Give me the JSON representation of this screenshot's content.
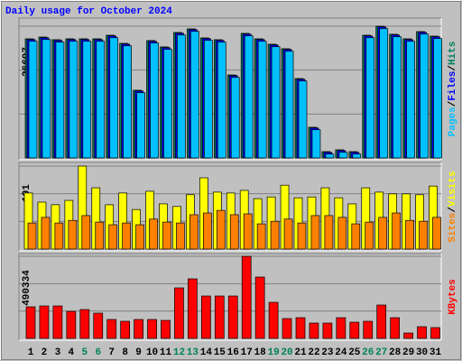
{
  "title": "Daily usage for October 2024",
  "categories": [
    "1",
    "2",
    "3",
    "4",
    "5",
    "6",
    "7",
    "8",
    "9",
    "10",
    "11",
    "12",
    "13",
    "14",
    "15",
    "16",
    "17",
    "18",
    "19",
    "20",
    "21",
    "22",
    "23",
    "24",
    "25",
    "26",
    "27",
    "28",
    "29",
    "30",
    "31"
  ],
  "label_colors": [
    "#000000",
    "#000000",
    "#000000",
    "#000000",
    "#00805c",
    "#00805c",
    "#000000",
    "#000000",
    "#000000",
    "#000000",
    "#000000",
    "#00805c",
    "#00805c",
    "#000000",
    "#000000",
    "#000000",
    "#000000",
    "#000000",
    "#00805c",
    "#00805c",
    "#000000",
    "#000000",
    "#000000",
    "#000000",
    "#000000",
    "#00805c",
    "#00805c",
    "#000000",
    "#000000",
    "#000000",
    "#000000"
  ],
  "legend_separator": "/",
  "chart_data": [
    {
      "type": "bar",
      "ylim": [
        0,
        26697
      ],
      "yticks": [
        26697
      ],
      "series": [
        {
          "name": "Hits",
          "color": "#00805c",
          "values": [
            24140,
            24500,
            23960,
            24140,
            24140,
            24140,
            24870,
            23220,
            13720,
            23780,
            22500,
            25420,
            26150,
            24320,
            23960,
            16820,
            25240,
            24140,
            23040,
            22130,
            16090,
            6220,
            1280,
            1650,
            1280,
            24870,
            26697,
            25060,
            24140,
            25600,
            24690
          ]
        },
        {
          "name": "Files",
          "color": "#0000ff",
          "values": [
            23990,
            24350,
            23810,
            23990,
            23990,
            23990,
            24720,
            23070,
            13570,
            23630,
            22350,
            25270,
            26000,
            24170,
            23810,
            16670,
            25090,
            23990,
            22890,
            21980,
            15940,
            6070,
            1130,
            1500,
            1130,
            24720,
            26547,
            24910,
            23990,
            25450,
            24540
          ]
        },
        {
          "name": "Pages",
          "color": "#00c0ff",
          "values": [
            23640,
            24000,
            23460,
            23640,
            23640,
            23640,
            24370,
            22720,
            13220,
            23280,
            22000,
            24920,
            25650,
            23820,
            23460,
            16320,
            24740,
            23640,
            22540,
            21630,
            15590,
            5720,
            780,
            1150,
            780,
            24370,
            26197,
            24560,
            23640,
            25100,
            24190
          ]
        }
      ]
    },
    {
      "type": "bar",
      "ylim": [
        0,
        191
      ],
      "yticks": [
        191
      ],
      "series": [
        {
          "name": "Visits",
          "color": "#ffff00",
          "values": [
            129,
            108,
            102,
            112,
            191,
            141,
            102,
            129,
            91,
            133,
            104,
            98,
            125,
            164,
            131,
            129,
            135,
            116,
            120,
            147,
            118,
            120,
            141,
            118,
            104,
            141,
            131,
            127,
            127,
            125,
            145
          ]
        },
        {
          "name": "Sites",
          "color": "#ff8000",
          "values": [
            60,
            73,
            60,
            66,
            77,
            62,
            56,
            60,
            56,
            69,
            62,
            60,
            79,
            83,
            89,
            79,
            81,
            58,
            64,
            69,
            60,
            77,
            77,
            73,
            58,
            62,
            73,
            83,
            66,
            64,
            73
          ]
        }
      ]
    },
    {
      "type": "bar",
      "ylim": [
        0,
        490334
      ],
      "yticks": [
        490334
      ],
      "series": [
        {
          "name": "KBytes",
          "color": "#ff0000",
          "values": [
            188580,
            193970,
            193970,
            161640,
            172420,
            150860,
            113150,
            102370,
            113150,
            113150,
            107760,
            301730,
            355610,
            253240,
            253240,
            253240,
            490334,
            366380,
            215520,
            118540,
            123920,
            91600,
            91600,
            123920,
            96980,
            102370,
            199360,
            123920,
            32330,
            70040,
            64660
          ]
        }
      ]
    }
  ]
}
